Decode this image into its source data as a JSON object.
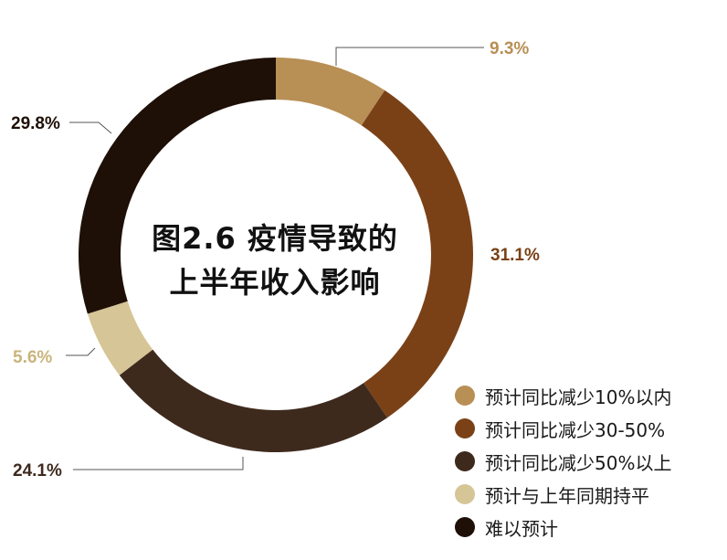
{
  "chart_data": {
    "type": "pie",
    "style": "donut",
    "title_lines": [
      "图2.6 疫情导致的",
      "上半年收入影响"
    ],
    "slices": [
      {
        "label": "预计同比减少10%以内",
        "value": 9.3,
        "value_label": "9.3%",
        "color": "#B88F55"
      },
      {
        "label": "预计同比减少30-50%",
        "value": 31.1,
        "value_label": "31.1%",
        "color": "#7A4117"
      },
      {
        "label": "预计同比减少50%以上",
        "value": 24.1,
        "value_label": "24.1%",
        "color": "#3E2A1D"
      },
      {
        "label": "预计与上年同期持平",
        "value": 5.6,
        "value_label": "5.6%",
        "color": "#D6C596"
      },
      {
        "label": "难以预计",
        "value": 29.8,
        "value_label": "29.8%",
        "color": "#1E1007"
      }
    ],
    "start": "top",
    "direction": "clockwise",
    "legend_position": "bottom-right"
  }
}
